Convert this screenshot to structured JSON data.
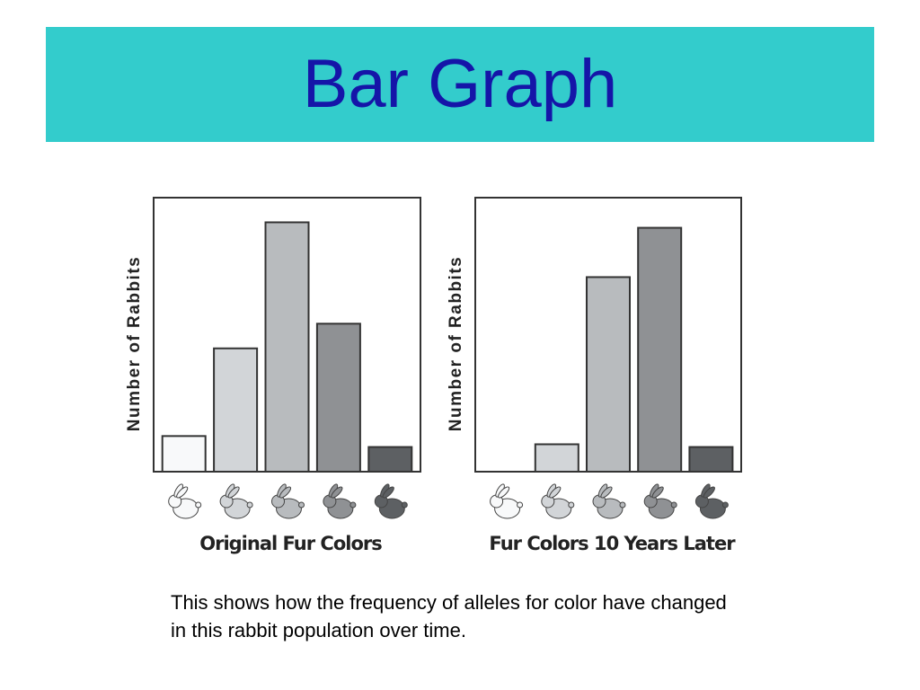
{
  "header": {
    "title": "Bar Graph"
  },
  "chart_data": [
    {
      "type": "bar",
      "y_label": "Number of Rabbits",
      "x_label": "Original Fur Colors",
      "values": [
        13,
        45,
        91,
        54,
        9
      ],
      "colors": [
        "#f8f9fa",
        "#d2d5d8",
        "#b8bbbe",
        "#8f9194",
        "#5d6063"
      ],
      "ylim": [
        0,
        100
      ]
    },
    {
      "type": "bar",
      "y_label": "Number of Rabbits",
      "x_label": "Fur Colors 10 Years Later",
      "values": [
        0,
        10,
        71,
        89,
        9
      ],
      "colors": [
        "#f8f9fa",
        "#d2d5d8",
        "#b8bbbe",
        "#8f9194",
        "#5d6063"
      ],
      "ylim": [
        0,
        100
      ]
    }
  ],
  "caption": "This shows how the frequency of alleles for color have changed in this rabbit population over time."
}
